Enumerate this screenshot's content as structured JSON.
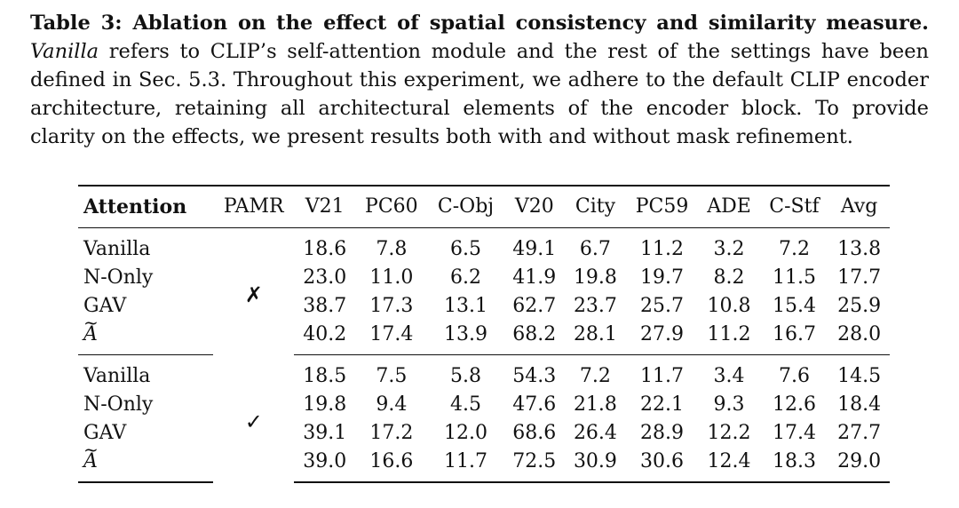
{
  "caption": {
    "label": "Table 3: Ablation on the effect of spatial consistency and similarity measure.",
    "italic_term": "Vanilla",
    "text": " refers to CLIP’s self-attention module and the rest of the settings have been defined in Sec. 5.3. Throughout this experiment, we adhere to the default CLIP encoder architecture, retaining all architectural elements of the encoder block. To provide clarity on the effects, we present results both with and without mask refinement."
  },
  "table": {
    "headers": [
      "Attention",
      "PAMR",
      "V21",
      "PC60",
      "C-Obj",
      "V20",
      "City",
      "PC59",
      "ADE",
      "C-Stf",
      "Avg"
    ],
    "groups": [
      {
        "pamr": "✗",
        "rows": [
          {
            "attention": "Vanilla",
            "values": [
              "18.6",
              "7.8",
              "6.5",
              "49.1",
              "6.7",
              "11.2",
              "3.2",
              "7.2",
              "13.8"
            ]
          },
          {
            "attention": "N-Only",
            "values": [
              "23.0",
              "11.0",
              "6.2",
              "41.9",
              "19.8",
              "19.7",
              "8.2",
              "11.5",
              "17.7"
            ]
          },
          {
            "attention": "GAV",
            "values": [
              "38.7",
              "17.3",
              "13.1",
              "62.7",
              "23.7",
              "25.7",
              "10.8",
              "15.4",
              "25.9"
            ]
          },
          {
            "attention": "A",
            "values": [
              "40.2",
              "17.4",
              "13.9",
              "68.2",
              "28.1",
              "27.9",
              "11.2",
              "16.7",
              "28.0"
            ]
          }
        ]
      },
      {
        "pamr": "✓",
        "rows": [
          {
            "attention": "Vanilla",
            "values": [
              "18.5",
              "7.5",
              "5.8",
              "54.3",
              "7.2",
              "11.7",
              "3.4",
              "7.6",
              "14.5"
            ]
          },
          {
            "attention": "N-Only",
            "values": [
              "19.8",
              "9.4",
              "4.5",
              "47.6",
              "21.8",
              "22.1",
              "9.3",
              "12.6",
              "18.4"
            ]
          },
          {
            "attention": "GAV",
            "values": [
              "39.1",
              "17.2",
              "12.0",
              "68.6",
              "26.4",
              "28.9",
              "12.2",
              "17.4",
              "27.7"
            ]
          },
          {
            "attention": "A",
            "values": [
              "39.0",
              "16.6",
              "11.7",
              "72.5",
              "30.9",
              "30.6",
              "12.4",
              "18.3",
              "29.0"
            ]
          }
        ]
      }
    ]
  }
}
